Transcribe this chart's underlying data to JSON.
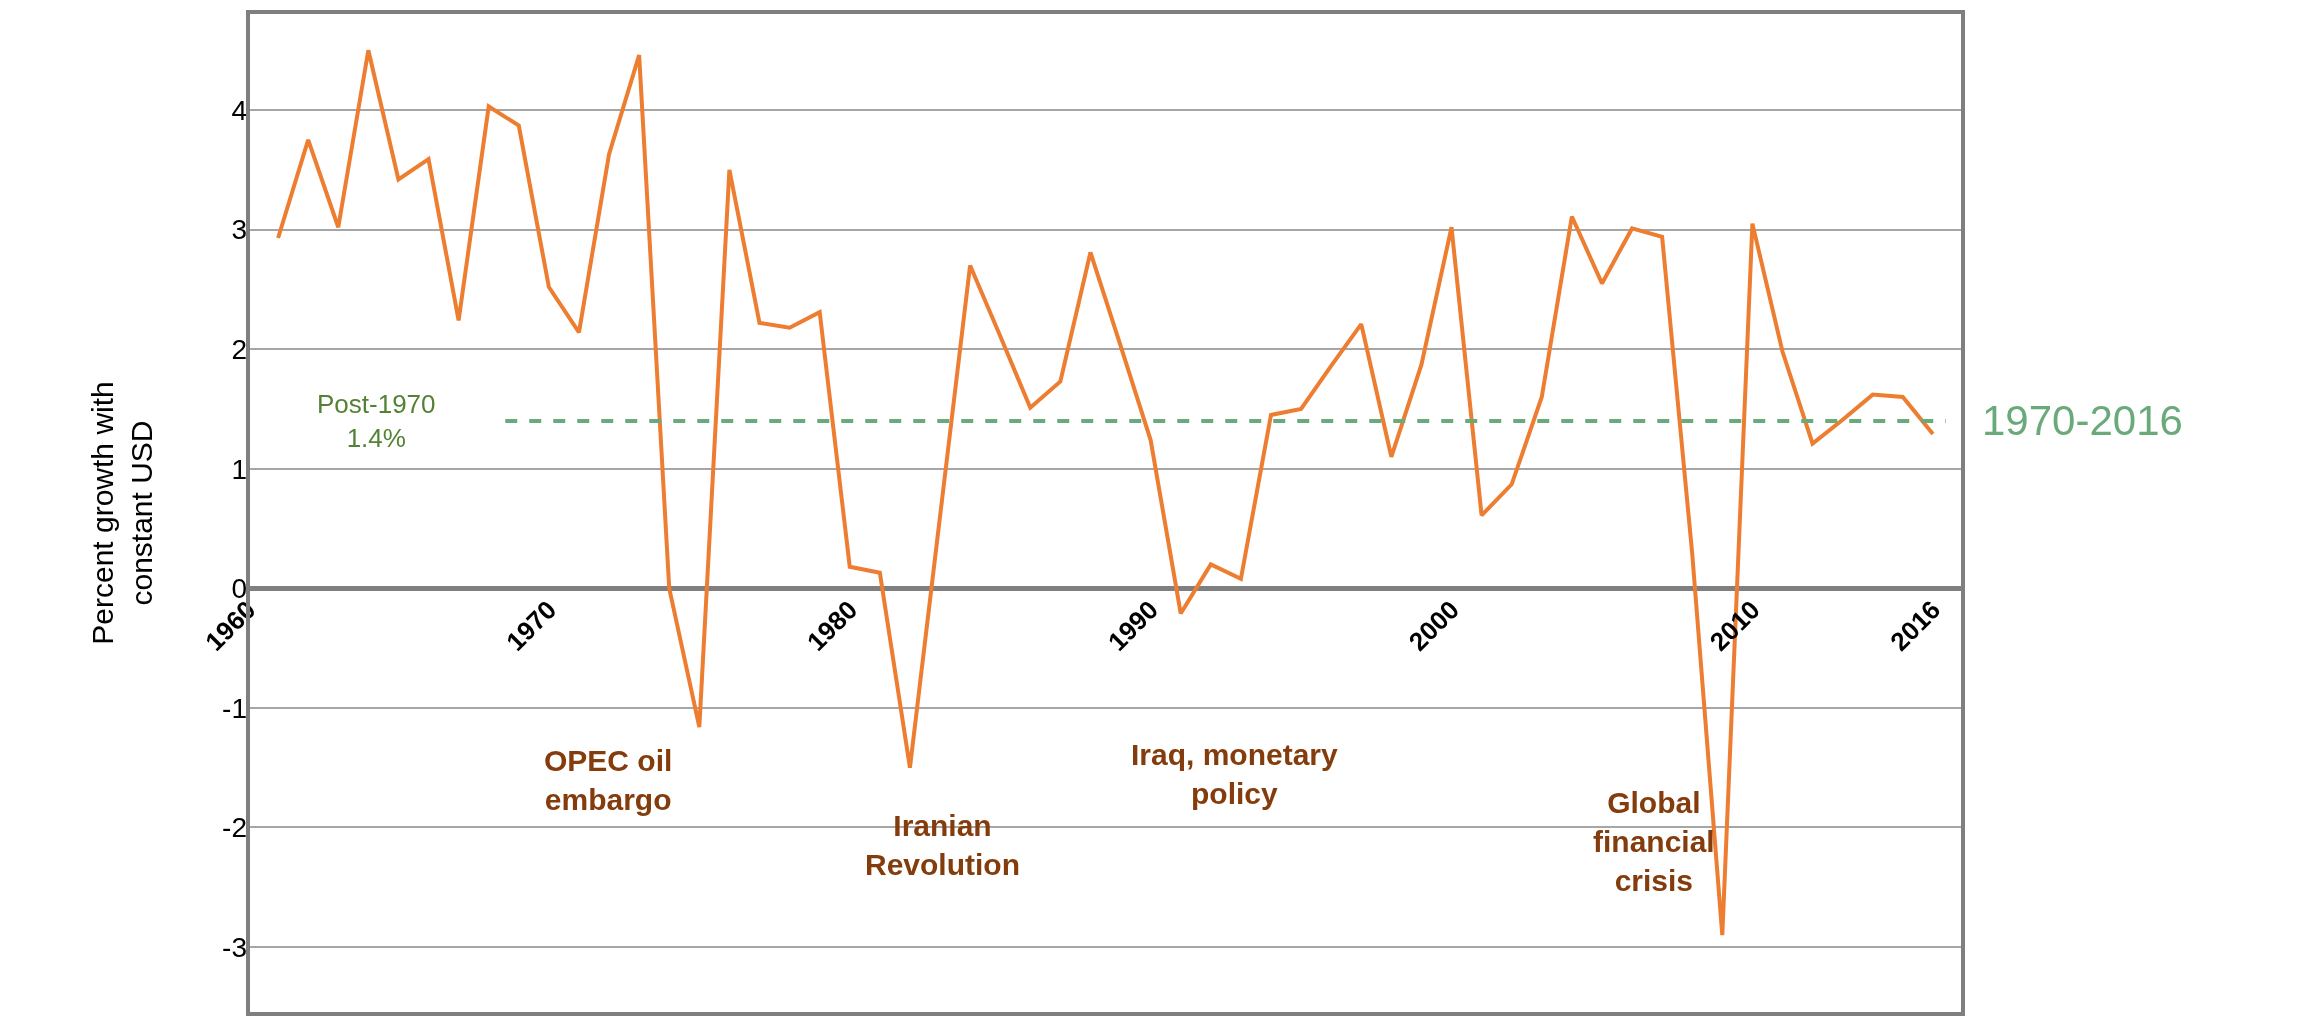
{
  "chart_data": {
    "type": "line",
    "ylabel": "Percent growth with\nconstant USD",
    "x": [
      1961,
      1962,
      1963,
      1964,
      1965,
      1966,
      1967,
      1968,
      1969,
      1970,
      1971,
      1972,
      1973,
      1974,
      1975,
      1976,
      1977,
      1978,
      1979,
      1980,
      1981,
      1982,
      1983,
      1984,
      1985,
      1986,
      1987,
      1988,
      1989,
      1990,
      1991,
      1992,
      1993,
      1994,
      1995,
      1996,
      1997,
      1998,
      1999,
      2000,
      2001,
      2002,
      2003,
      2004,
      2005,
      2006,
      2007,
      2008,
      2009,
      2010,
      2011,
      2012,
      2013,
      2014,
      2015,
      2016
    ],
    "series": [
      {
        "color": "#ed7d31",
        "values": [
          2.93,
          3.75,
          3.02,
          4.5,
          3.42,
          3.59,
          2.24,
          4.03,
          3.87,
          2.52,
          2.14,
          3.63,
          4.46,
          0.0,
          -1.16,
          3.5,
          2.22,
          2.18,
          2.31,
          0.18,
          0.13,
          -1.5,
          0.6,
          2.7,
          2.11,
          1.51,
          1.73,
          2.81,
          2.03,
          1.24,
          -0.21,
          0.2,
          0.08,
          1.45,
          1.5,
          1.86,
          2.21,
          1.1,
          1.87,
          3.02,
          0.61,
          0.87,
          1.6,
          3.11,
          2.55,
          3.01,
          2.94,
          0.29,
          -2.9,
          3.05,
          1.98,
          1.21,
          1.41,
          1.62,
          1.6,
          1.29
        ]
      }
    ],
    "xlim": [
      1960,
      2017
    ],
    "xticks": [
      1960,
      1970,
      1980,
      1990,
      2000,
      2010,
      2016
    ],
    "ylim": [
      -3.56,
      4.82
    ],
    "yticks": [
      -3,
      -2,
      -1,
      0,
      1,
      2,
      3,
      4
    ],
    "grid": "y",
    "marker": "none",
    "line_style": "solid",
    "ref_lines": [
      {
        "axis": "y",
        "value": 1.4,
        "label": "Post-1970\n1.4%",
        "color": "#6aaa7a",
        "line_style": "dashed"
      }
    ],
    "annotations": [
      "1970-2016",
      "OPEC oil\nembargo",
      "Iranian\nRevolution",
      "Iraq, monetary\npolicy",
      "Global\nfinancial\ncrisis"
    ]
  }
}
